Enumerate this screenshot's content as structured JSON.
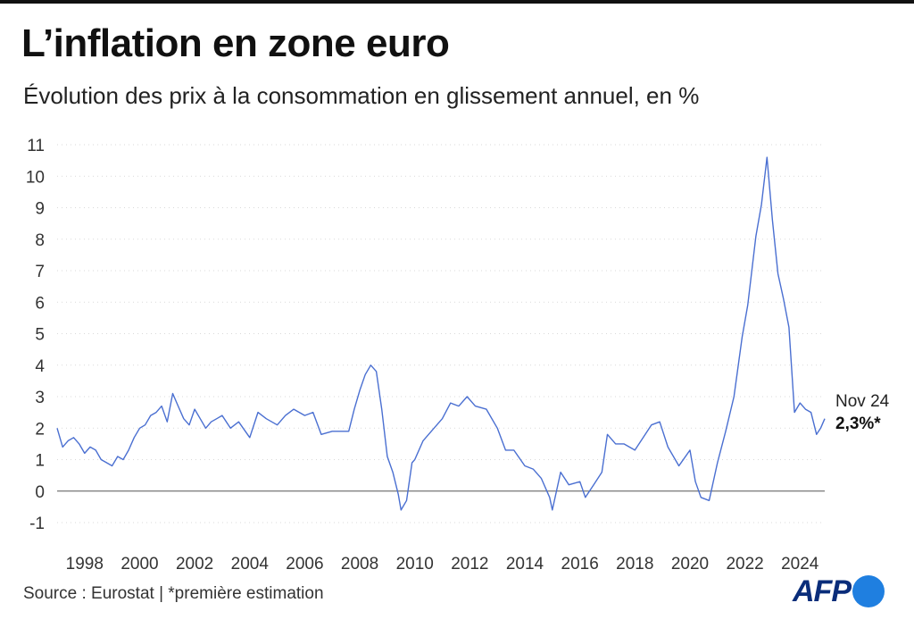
{
  "header": {
    "title": "L’inflation en zone euro",
    "subtitle": "Évolution des prix à la consommation en glissement annuel, en %"
  },
  "chart_data": {
    "type": "line",
    "title": "L’inflation en zone euro",
    "subtitle": "Évolution des prix à la consommation en glissement annuel, en %",
    "xlabel": "",
    "ylabel": "",
    "xlim": [
      1997.0,
      2024.9
    ],
    "ylim": [
      -1,
      11
    ],
    "y_ticks": [
      -1,
      0,
      1,
      2,
      3,
      4,
      5,
      6,
      7,
      8,
      9,
      10,
      11
    ],
    "x_ticks": [
      "1998",
      "2000",
      "2002",
      "2004",
      "2006",
      "2008",
      "2010",
      "2012",
      "2014",
      "2016",
      "2018",
      "2020",
      "2022",
      "2024"
    ],
    "grid": true,
    "line_color": "#4a6fd1",
    "zero_line_color": "#555555",
    "series": [
      {
        "x": [
          1997.0,
          1997.2,
          1997.4,
          1997.6,
          1997.8,
          1998.0,
          1998.2,
          1998.4,
          1998.6,
          1998.8,
          1999.0,
          1999.2,
          1999.4,
          1999.6,
          1999.8,
          2000.0,
          2000.2,
          2000.4,
          2000.6,
          2000.8,
          2001.0,
          2001.2,
          2001.4,
          2001.6,
          2001.8,
          2002.0,
          2002.2,
          2002.4,
          2002.6,
          2002.8,
          2003.0,
          2003.3,
          2003.6,
          2004.0,
          2004.3,
          2004.6,
          2005.0,
          2005.3,
          2005.6,
          2006.0,
          2006.3,
          2006.6,
          2007.0,
          2007.3,
          2007.6,
          2007.8,
          2008.0,
          2008.2,
          2008.4,
          2008.6,
          2008.8,
          2009.0,
          2009.2,
          2009.4,
          2009.5,
          2009.7,
          2009.9,
          2010.0,
          2010.3,
          2010.6,
          2011.0,
          2011.3,
          2011.6,
          2011.9,
          2012.2,
          2012.6,
          2013.0,
          2013.3,
          2013.6,
          2014.0,
          2014.3,
          2014.6,
          2014.9,
          2015.0,
          2015.3,
          2015.6,
          2016.0,
          2016.2,
          2016.5,
          2016.8,
          2017.0,
          2017.3,
          2017.6,
          2018.0,
          2018.3,
          2018.6,
          2018.9,
          2019.2,
          2019.6,
          2020.0,
          2020.2,
          2020.4,
          2020.7,
          2021.0,
          2021.3,
          2021.6,
          2021.9,
          2022.1,
          2022.4,
          2022.6,
          2022.8,
          2023.0,
          2023.2,
          2023.4,
          2023.6,
          2023.8,
          2024.0,
          2024.2,
          2024.4,
          2024.6,
          2024.75,
          2024.9
        ],
        "y": [
          2.0,
          1.4,
          1.6,
          1.7,
          1.5,
          1.2,
          1.4,
          1.3,
          1.0,
          0.9,
          0.8,
          1.1,
          1.0,
          1.3,
          1.7,
          2.0,
          2.1,
          2.4,
          2.5,
          2.7,
          2.2,
          3.1,
          2.7,
          2.3,
          2.1,
          2.6,
          2.3,
          2.0,
          2.2,
          2.3,
          2.4,
          2.0,
          2.2,
          1.7,
          2.5,
          2.3,
          2.1,
          2.4,
          2.6,
          2.4,
          2.5,
          1.8,
          1.9,
          1.9,
          1.9,
          2.6,
          3.2,
          3.7,
          4.0,
          3.8,
          2.6,
          1.1,
          0.6,
          -0.1,
          -0.6,
          -0.3,
          0.9,
          1.0,
          1.6,
          1.9,
          2.3,
          2.8,
          2.7,
          3.0,
          2.7,
          2.6,
          2.0,
          1.3,
          1.3,
          0.8,
          0.7,
          0.4,
          -0.2,
          -0.6,
          0.6,
          0.2,
          0.3,
          -0.2,
          0.2,
          0.6,
          1.8,
          1.5,
          1.5,
          1.3,
          1.7,
          2.1,
          2.2,
          1.4,
          0.8,
          1.3,
          0.3,
          -0.2,
          -0.3,
          0.9,
          1.9,
          3.0,
          4.9,
          5.9,
          8.1,
          9.1,
          10.6,
          8.6,
          6.9,
          6.1,
          5.2,
          2.5,
          2.8,
          2.6,
          2.5,
          1.8,
          2.0,
          2.3
        ]
      }
    ],
    "annotation": {
      "x": 2024.9,
      "y": 2.3,
      "date_label": "Nov 24",
      "value_label": "2,3%*"
    }
  },
  "footer": {
    "source": "Source : Eurostat | *première estimation",
    "logo_text": "AFP"
  }
}
